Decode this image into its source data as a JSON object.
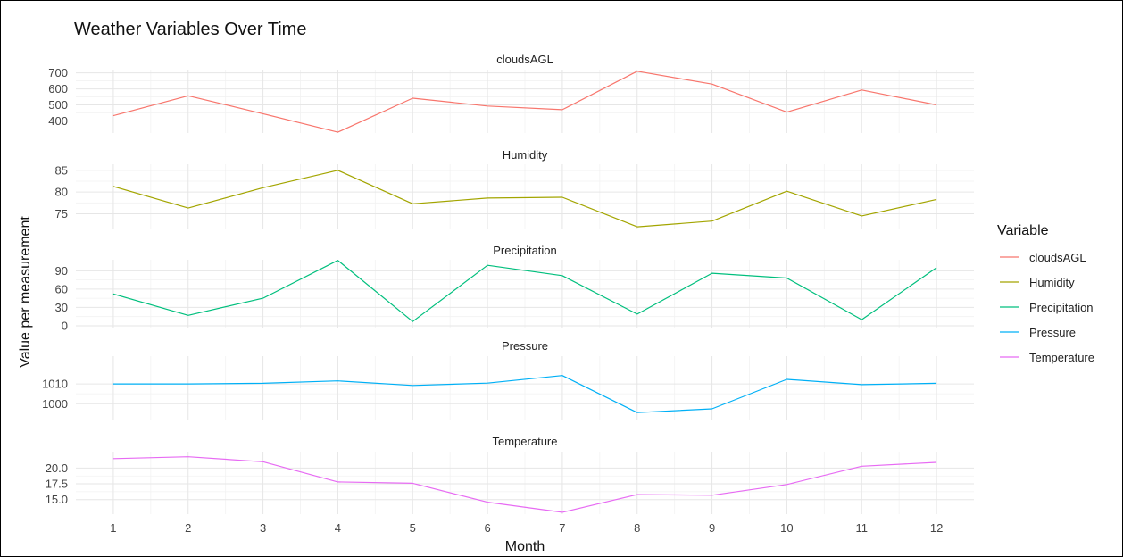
{
  "chart_data": {
    "type": "line",
    "title": "Weather Variables Over Time",
    "xlabel": "Month",
    "ylabel": "Value per measurement",
    "x": [
      1,
      2,
      3,
      4,
      5,
      6,
      7,
      8,
      9,
      10,
      11,
      12
    ],
    "legend": {
      "title": "Variable",
      "position": "right"
    },
    "grid": true,
    "panels": [
      {
        "name": "cloudsAGL",
        "color": "#F8766D",
        "ylim": [
          325,
          720
        ],
        "yticks": [
          400,
          500,
          600,
          700
        ],
        "values": [
          433,
          557,
          445,
          330,
          542,
          493,
          470,
          710,
          630,
          455,
          593,
          500
        ]
      },
      {
        "name": "Humidity",
        "color": "#A3A500",
        "ylim": [
          71.6,
          86.4
        ],
        "yticks": [
          75,
          80,
          85
        ],
        "values": [
          81.3,
          76.3,
          81.0,
          85.0,
          77.3,
          78.6,
          78.8,
          72.0,
          73.3,
          80.2,
          74.5,
          78.3
        ]
      },
      {
        "name": "Precipitation",
        "color": "#00BF7D",
        "ylim": [
          -3,
          108
        ],
        "yticks": [
          0,
          30,
          60,
          90
        ],
        "values": [
          52,
          17,
          45,
          107,
          7,
          99,
          82,
          19,
          86,
          78,
          10,
          95
        ]
      },
      {
        "name": "Pressure",
        "color": "#00B0F6",
        "ylim": [
          992,
          1024
        ],
        "yticks": [
          1000,
          1010
        ],
        "values": [
          1010,
          1010,
          1010.3,
          1011.5,
          1009.2,
          1010.4,
          1014.2,
          995.5,
          997.4,
          1012.3,
          1009.6,
          1010.3
        ]
      },
      {
        "name": "Temperature",
        "color": "#E76BF3",
        "ylim": [
          12.7,
          22.6
        ],
        "yticks": [
          15.0,
          17.5,
          20.0
        ],
        "values": [
          21.5,
          21.8,
          21.0,
          17.8,
          17.6,
          14.6,
          13.0,
          15.8,
          15.7,
          17.4,
          20.3,
          20.9
        ]
      }
    ]
  }
}
